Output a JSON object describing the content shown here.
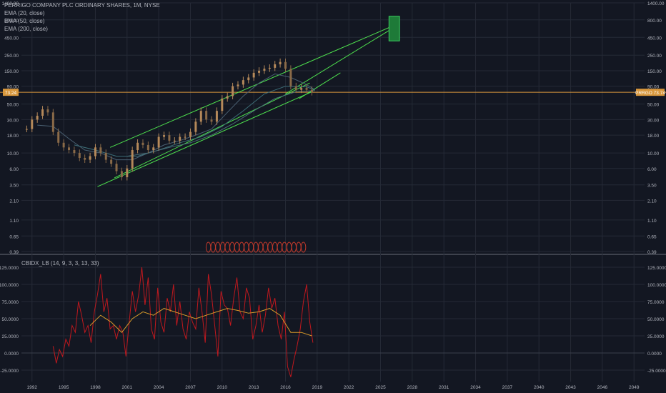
{
  "colors": {
    "background": "#131722",
    "grid": "#252a36",
    "axis_text": "#b2b5be",
    "price_up": "#b5895a",
    "price_down": "#8a6a48",
    "ema20": "#4a6072",
    "ema50": "#3d6e78",
    "ema200": "#4a6f78",
    "trendline": "#4ee24e",
    "price_line": "#d8973c",
    "marker": "#c0392b",
    "box_fill": "#1e7a38",
    "osc_main": "#c0181e",
    "osc_signal": "#d89a2a",
    "osc_zero": "#3a3f4c"
  },
  "header": {
    "title": "PERRIGO COMPANY PLC ORDINARY SHARES, 1M, NYSE",
    "indicators": [
      "EMA (20, close)",
      "EMA (50, close)",
      "EMA (200, close)"
    ]
  },
  "price_labels": {
    "left": "73.24",
    "right": "PRRGO 73.74"
  },
  "chart_data": [
    {
      "type": "line",
      "title": "PERRIGO COMPANY PLC ORDINARY SHARES, 1M, NYSE",
      "y_scale": "log",
      "ylim": [
        0.39,
        1400
      ],
      "xlim": [
        1991,
        2050
      ],
      "y_ticks": [
        "1400.00",
        "800.00",
        "450.00",
        "250.00",
        "150.00",
        "90.00",
        "50.00",
        "30.00",
        "18.00",
        "10.00",
        "6.00",
        "3.50",
        "2.10",
        "1.10",
        "0.65",
        "0.39"
      ],
      "y_tick_values": [
        1400,
        800,
        450,
        250,
        150,
        90,
        50,
        30,
        18,
        10,
        6,
        3.5,
        2.1,
        1.1,
        0.65,
        0.39
      ],
      "x_ticks": [
        "1992",
        "1995",
        "1998",
        "2001",
        "2004",
        "2007",
        "2010",
        "2013",
        "2016",
        "2019",
        "2022",
        "2025",
        "2028",
        "2031",
        "2034",
        "2037",
        "2040",
        "2043",
        "2046",
        "2049"
      ],
      "x_tick_values": [
        1992,
        1995,
        1998,
        2001,
        2004,
        2007,
        2010,
        2013,
        2016,
        2019,
        2022,
        2025,
        2028,
        2031,
        2034,
        2037,
        2040,
        2043,
        2046,
        2049
      ],
      "current_price": 73.74,
      "series": [
        {
          "name": "PRRGO",
          "x": [
            1991.5,
            1992.0,
            1992.5,
            1993.0,
            1993.5,
            1994.0,
            1994.5,
            1995.0,
            1995.5,
            1996.0,
            1996.5,
            1997.0,
            1997.5,
            1998.0,
            1998.5,
            1999.0,
            1999.5,
            2000.0,
            2000.5,
            2001.0,
            2001.5,
            2002.0,
            2002.5,
            2003.0,
            2003.5,
            2004.0,
            2004.5,
            2005.0,
            2005.5,
            2006.0,
            2006.5,
            2007.0,
            2007.5,
            2008.0,
            2008.5,
            2009.0,
            2009.5,
            2010.0,
            2010.5,
            2011.0,
            2011.5,
            2012.0,
            2012.5,
            2013.0,
            2013.5,
            2014.0,
            2014.5,
            2015.0,
            2015.5,
            2016.0,
            2016.5,
            2017.0,
            2017.5,
            2018.0,
            2018.5
          ],
          "values": [
            22,
            30,
            34,
            42,
            38,
            20,
            14,
            12,
            11,
            10,
            8.5,
            8,
            9,
            12,
            10,
            8,
            7,
            5.5,
            4.5,
            6,
            11,
            14,
            13,
            11,
            12,
            17,
            18,
            15,
            15,
            17,
            17,
            20,
            28,
            40,
            30,
            28,
            40,
            60,
            65,
            90,
            95,
            110,
            120,
            140,
            150,
            160,
            165,
            185,
            200,
            160,
            90,
            80,
            85,
            80,
            73.74
          ]
        },
        {
          "name": "EMA (20, close)",
          "x": [
            1992.5,
            1994,
            1995.5,
            1997,
            1998.5,
            2000,
            2001.5,
            2003,
            2004.5,
            2006,
            2007.5,
            2009,
            2010.5,
            2012,
            2013.5,
            2015,
            2016.5,
            2018,
            2018.8
          ],
          "values": [
            25,
            24,
            16,
            11,
            10,
            8,
            8,
            10,
            13,
            15,
            18,
            22,
            38,
            65,
            100,
            135,
            120,
            95,
            80
          ]
        },
        {
          "name": "EMA (50, close)",
          "x": [
            1996,
            1998,
            2000,
            2002,
            2004,
            2006,
            2008,
            2010,
            2012,
            2014,
            2016,
            2018,
            2018.8
          ],
          "values": [
            13,
            11,
            9,
            9,
            11,
            14,
            17,
            24,
            40,
            70,
            90,
            88,
            80
          ]
        },
        {
          "name": "EMA (200, close)",
          "x": [
            2001,
            2003,
            2005,
            2007,
            2009,
            2011,
            2013,
            2015,
            2017,
            2018.8
          ],
          "values": [
            9,
            10,
            12,
            14,
            18,
            26,
            40,
            60,
            75,
            78
          ]
        }
      ]
    },
    {
      "type": "line",
      "title": "CBIDX_LB (14, 9, 3, 3, 13, 33)",
      "ylim": [
        -37.5,
        137.5
      ],
      "y_ticks": [
        "125.0000",
        "100.0000",
        "75.0000",
        "50.0000",
        "25.0000",
        "0.0000",
        "-25.0000"
      ],
      "y_tick_values": [
        125,
        100,
        75,
        50,
        25,
        0,
        -25
      ],
      "series": [
        {
          "name": "CBIDX_LB",
          "x": [
            1994.0,
            1994.3,
            1994.6,
            1994.9,
            1995.2,
            1995.5,
            1995.8,
            1996.1,
            1996.4,
            1996.7,
            1997.0,
            1997.3,
            1997.6,
            1997.9,
            1998.2,
            1998.5,
            1998.8,
            1999.1,
            1999.4,
            1999.7,
            2000.0,
            2000.3,
            2000.6,
            2000.9,
            2001.2,
            2001.5,
            2001.8,
            2002.1,
            2002.4,
            2002.7,
            2003.0,
            2003.3,
            2003.6,
            2003.9,
            2004.2,
            2004.5,
            2004.8,
            2005.1,
            2005.4,
            2005.7,
            2006.0,
            2006.3,
            2006.6,
            2006.9,
            2007.2,
            2007.5,
            2007.8,
            2008.1,
            2008.4,
            2008.7,
            2009.0,
            2009.3,
            2009.6,
            2009.9,
            2010.2,
            2010.5,
            2010.8,
            2011.1,
            2011.4,
            2011.7,
            2012.0,
            2012.3,
            2012.6,
            2012.9,
            2013.2,
            2013.5,
            2013.8,
            2014.1,
            2014.4,
            2014.7,
            2015.0,
            2015.3,
            2015.6,
            2015.9,
            2016.2,
            2016.5,
            2016.8,
            2017.1,
            2017.4,
            2017.7,
            2018.0,
            2018.3,
            2018.6
          ],
          "values": [
            10,
            -15,
            5,
            -5,
            20,
            10,
            40,
            30,
            75,
            55,
            30,
            40,
            15,
            60,
            85,
            115,
            60,
            80,
            35,
            40,
            20,
            40,
            30,
            -5,
            45,
            90,
            60,
            85,
            125,
            70,
            110,
            35,
            20,
            95,
            45,
            30,
            80,
            60,
            100,
            40,
            75,
            35,
            20,
            60,
            45,
            35,
            95,
            60,
            15,
            115,
            85,
            40,
            -5,
            90,
            70,
            65,
            40,
            80,
            110,
            60,
            50,
            95,
            80,
            20,
            40,
            70,
            30,
            55,
            95,
            65,
            80,
            40,
            20,
            60,
            -20,
            -35,
            -10,
            10,
            35,
            75,
            100,
            45,
            15
          ]
        },
        {
          "name": "Signal",
          "x": [
            1997.5,
            1998.5,
            1999.5,
            2000.5,
            2001.5,
            2002.5,
            2003.5,
            2004.5,
            2005.5,
            2006.5,
            2007.5,
            2008.5,
            2009.5,
            2010.5,
            2011.5,
            2012.5,
            2013.5,
            2014.5,
            2015.5,
            2016.5,
            2017.5,
            2018.5
          ],
          "values": [
            40,
            55,
            45,
            30,
            50,
            60,
            55,
            65,
            60,
            55,
            50,
            55,
            60,
            65,
            62,
            58,
            60,
            65,
            55,
            30,
            30,
            25
          ]
        }
      ]
    }
  ]
}
